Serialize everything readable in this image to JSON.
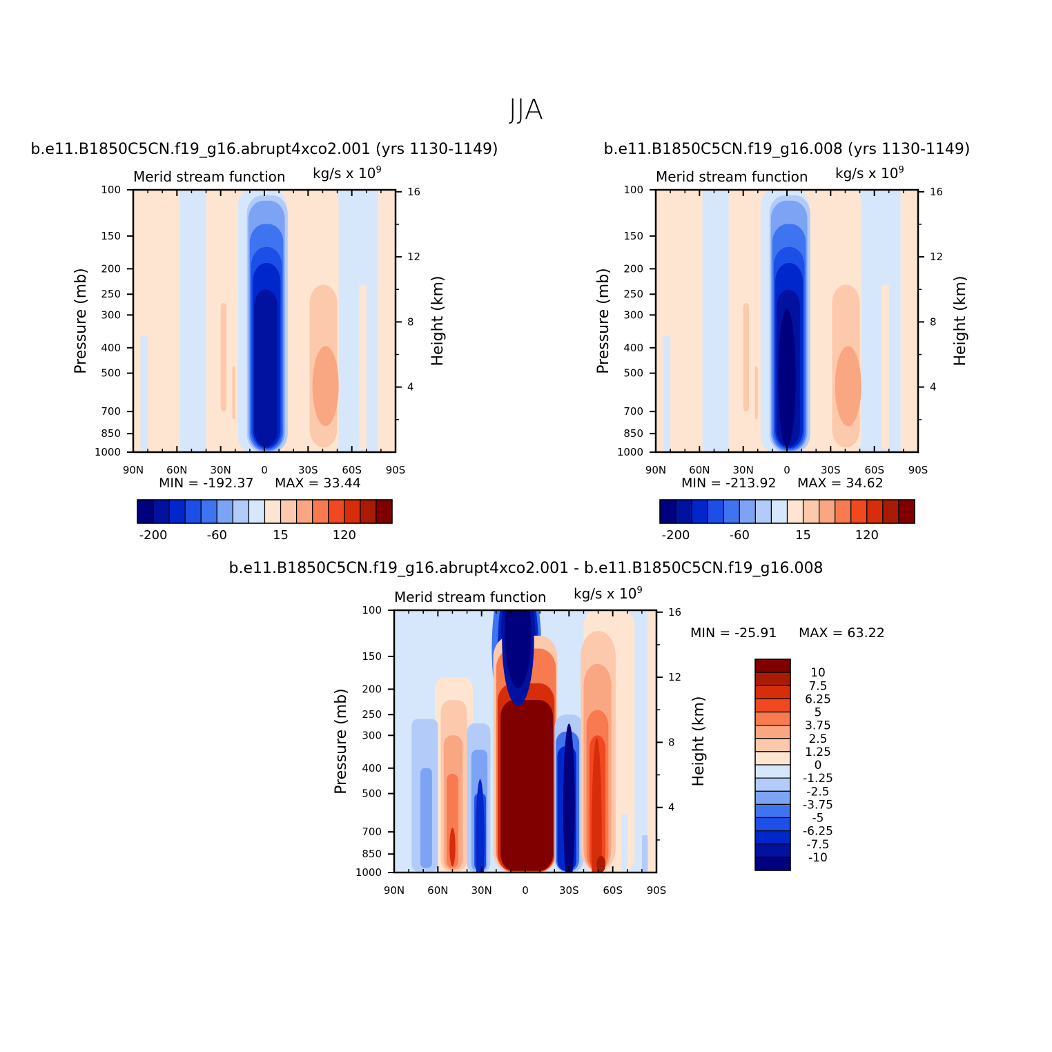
{
  "page": {
    "season": "JJA"
  },
  "colors": {
    "ramp": [
      "#00007f",
      "#00129f",
      "#0027cc",
      "#1c4ee8",
      "#3f74f0",
      "#7da3f5",
      "#b3cbf8",
      "#d7e7fb",
      "#fde5d2",
      "#fcc9ac",
      "#f9a682",
      "#f77a50",
      "#f04821",
      "#d62d0a",
      "#a81b05",
      "#800000"
    ],
    "axis": "#000000",
    "contour_line": "#1a1a1a"
  },
  "chart_data": [
    {
      "id": "left",
      "type": "contour",
      "title": "b.e11.B1850C5CN.f19_g16.abrupt4xco2.001 (yrs 1130-1149)",
      "subtitle_left": "Merid stream function",
      "units_text": "kg/s x 10",
      "units_exp": "9",
      "xlabel": "",
      "ylabel": "Pressure (mb)",
      "ylabel_right": "Height (km)",
      "x_ticks": [
        "90N",
        "60N",
        "30N",
        "0",
        "30S",
        "60S",
        "90S"
      ],
      "x_range": [
        90,
        -90
      ],
      "pressure_ticks": [
        100,
        150,
        200,
        250,
        300,
        400,
        500,
        700,
        850,
        1000
      ],
      "height_ticks": [
        16,
        12,
        8,
        4
      ],
      "min_text": "MIN = -192.37",
      "max_text": "MAX = 33.44",
      "colorbar_labels": [
        "-200",
        "-60",
        "15",
        "120"
      ],
      "levels": [
        -200,
        -180,
        -160,
        -140,
        -120,
        -100,
        -80,
        -60,
        -40,
        -20,
        15,
        30,
        45,
        60,
        75,
        90,
        105,
        120,
        135,
        150
      ],
      "features": [
        {
          "name": "hadley cell (clockwise)",
          "lat": -3,
          "p_top": 110,
          "p_bottom": 960,
          "value": -192.37
        },
        {
          "name": "southern ferrel cell",
          "lat": -49,
          "p_top": 220,
          "p_bottom": 920,
          "value": 33.44
        },
        {
          "name": "northern weak cell",
          "lat": -14,
          "p_top": 300,
          "p_bottom": 900,
          "value": 12
        },
        {
          "name": "northern ferrel",
          "lat": 40,
          "p_top": 110,
          "p_bottom": 980,
          "value": 8
        }
      ]
    },
    {
      "id": "right",
      "type": "contour",
      "title": "b.e11.B1850C5CN.f19_g16.008 (yrs 1130-1149)",
      "subtitle_left": "Merid stream function",
      "units_text": "kg/s x 10",
      "units_exp": "9",
      "xlabel": "",
      "ylabel": "Pressure (mb)",
      "ylabel_right": "Height (km)",
      "x_ticks": [
        "90N",
        "60N",
        "30N",
        "0",
        "30S",
        "60S",
        "90S"
      ],
      "x_range": [
        90,
        -90
      ],
      "pressure_ticks": [
        100,
        150,
        200,
        250,
        300,
        400,
        500,
        700,
        850,
        1000
      ],
      "height_ticks": [
        16,
        12,
        8,
        4
      ],
      "min_text": "MIN = -213.92",
      "max_text": "MAX = 34.62",
      "colorbar_labels": [
        "-200",
        "-60",
        "15",
        "120"
      ],
      "levels": [
        -200,
        -180,
        -160,
        -140,
        -120,
        -100,
        -80,
        -60,
        -40,
        -20,
        15,
        30,
        45,
        60,
        75,
        90,
        105,
        120,
        135,
        150
      ],
      "features": [
        {
          "name": "hadley cell (clockwise)",
          "lat": -2,
          "p_top": 110,
          "p_bottom": 960,
          "value": -213.92
        },
        {
          "name": "southern ferrel cell",
          "lat": -48,
          "p_top": 230,
          "p_bottom": 920,
          "value": 34.62
        }
      ]
    },
    {
      "id": "diff",
      "type": "contour",
      "title": "b.e11.B1850C5CN.f19_g16.abrupt4xco2.001 - b.e11.B1850C5CN.f19_g16.008",
      "subtitle_left": "Merid stream function",
      "units_text": "kg/s x 10",
      "units_exp": "9",
      "xlabel": "",
      "ylabel": "Pressure (mb)",
      "ylabel_right": "Height (km)",
      "x_ticks": [
        "90N",
        "60N",
        "30N",
        "0",
        "30S",
        "60S",
        "90S"
      ],
      "x_range": [
        90,
        -90
      ],
      "pressure_ticks": [
        100,
        150,
        200,
        250,
        300,
        400,
        500,
        700,
        850,
        1000
      ],
      "height_ticks": [
        16,
        12,
        8,
        4
      ],
      "min_text": "MIN = -25.91",
      "max_text": "MAX = 63.22",
      "colorbar_labels": [
        "10",
        "7.5",
        "6.25",
        "5",
        "3.75",
        "2.5",
        "1.25",
        "0",
        "-1.25",
        "-2.5",
        "-3.75",
        "-5",
        "-6.25",
        "-7.5",
        "-10"
      ],
      "levels": [
        -10,
        -7.5,
        -6.25,
        -5,
        -3.75,
        -2.5,
        -1.25,
        0,
        1.25,
        2.5,
        3.75,
        5,
        6.25,
        7.5,
        10
      ],
      "features": [
        {
          "name": "equatorial positive",
          "lat": 0,
          "p_top": 210,
          "p_bottom": 990,
          "value": 63.22
        },
        {
          "name": "upper negative",
          "lat": 4,
          "p_top": 100,
          "p_bottom": 240,
          "value": -25.91
        },
        {
          "name": "negative 30S",
          "lat": -27,
          "p_top": 250,
          "p_bottom": 990,
          "value": -12
        },
        {
          "name": "positive 50S",
          "lat": -52,
          "p_top": 120,
          "p_bottom": 990,
          "value": 8
        },
        {
          "name": "negative 28N",
          "lat": 28,
          "p_top": 280,
          "p_bottom": 990,
          "value": -8
        },
        {
          "name": "positive 50N",
          "lat": 50,
          "p_top": 230,
          "p_bottom": 990,
          "value": 5
        }
      ]
    }
  ]
}
